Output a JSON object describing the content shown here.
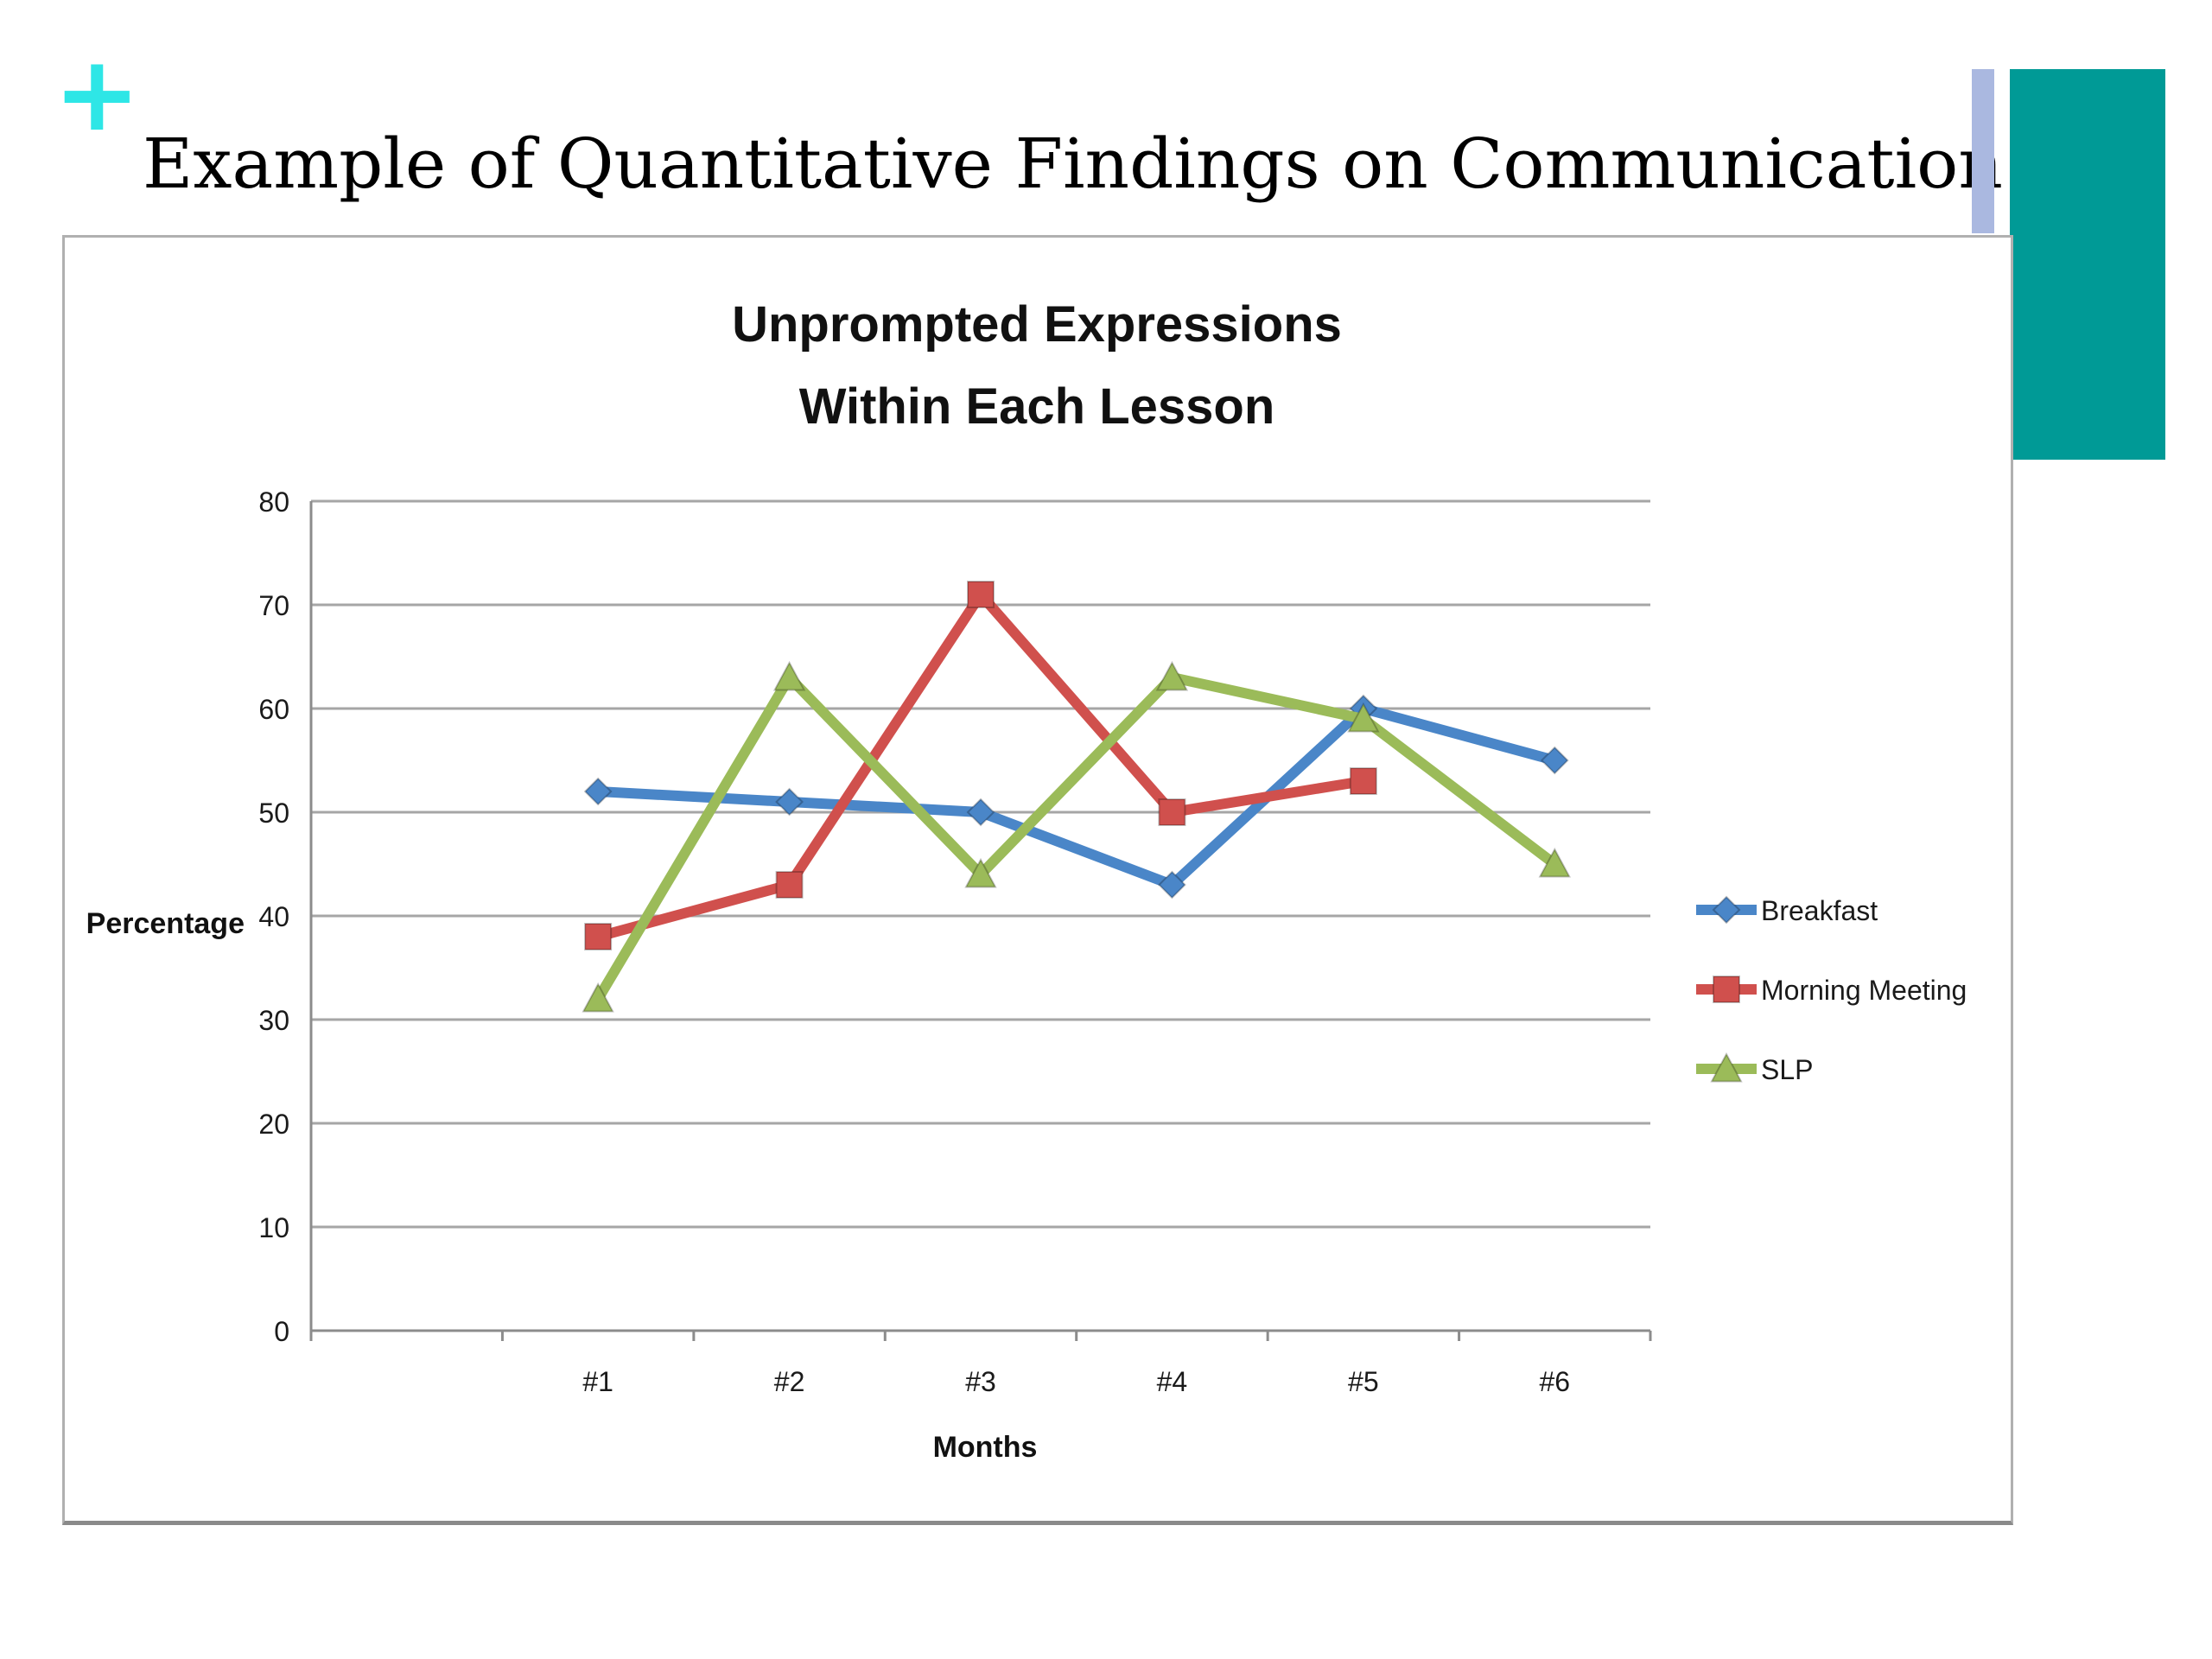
{
  "slide": {
    "plus_glyph": "+",
    "title": "Example of Quantitative Findings on Communication"
  },
  "colors": {
    "plus": "#2ee6e6",
    "accent_thin": "#aab8e0",
    "accent_block": "#009a96",
    "grid": "#a6a6a6",
    "axis": "#8c8c8c",
    "text": "#1a1a1a"
  },
  "chart_data": {
    "type": "line",
    "title_lines": [
      "Unprompted Expressions",
      "Within Each Lesson"
    ],
    "xlabel": "Months",
    "ylabel": "Percentage",
    "ylim": [
      0,
      80
    ],
    "y_ticks": [
      "0",
      "10",
      "20",
      "30",
      "40",
      "50",
      "60",
      "70",
      "80"
    ],
    "categories": [
      "",
      "#1",
      "#2",
      "#3",
      "#4",
      "#5",
      "#6"
    ],
    "grid": true,
    "legend_position": "right",
    "series": [
      {
        "name": "Breakfast",
        "color": "#4a86c8",
        "marker": "diamond",
        "values": [
          null,
          52,
          51,
          50,
          43,
          60,
          55
        ]
      },
      {
        "name": "Morning Meeting",
        "color": "#d0504d",
        "marker": "square",
        "values": [
          null,
          38,
          43,
          71,
          50,
          53,
          null
        ]
      },
      {
        "name": "SLP",
        "color": "#9bbb59",
        "marker": "triangle",
        "values": [
          null,
          32,
          63,
          44,
          63,
          59,
          45
        ]
      }
    ]
  }
}
